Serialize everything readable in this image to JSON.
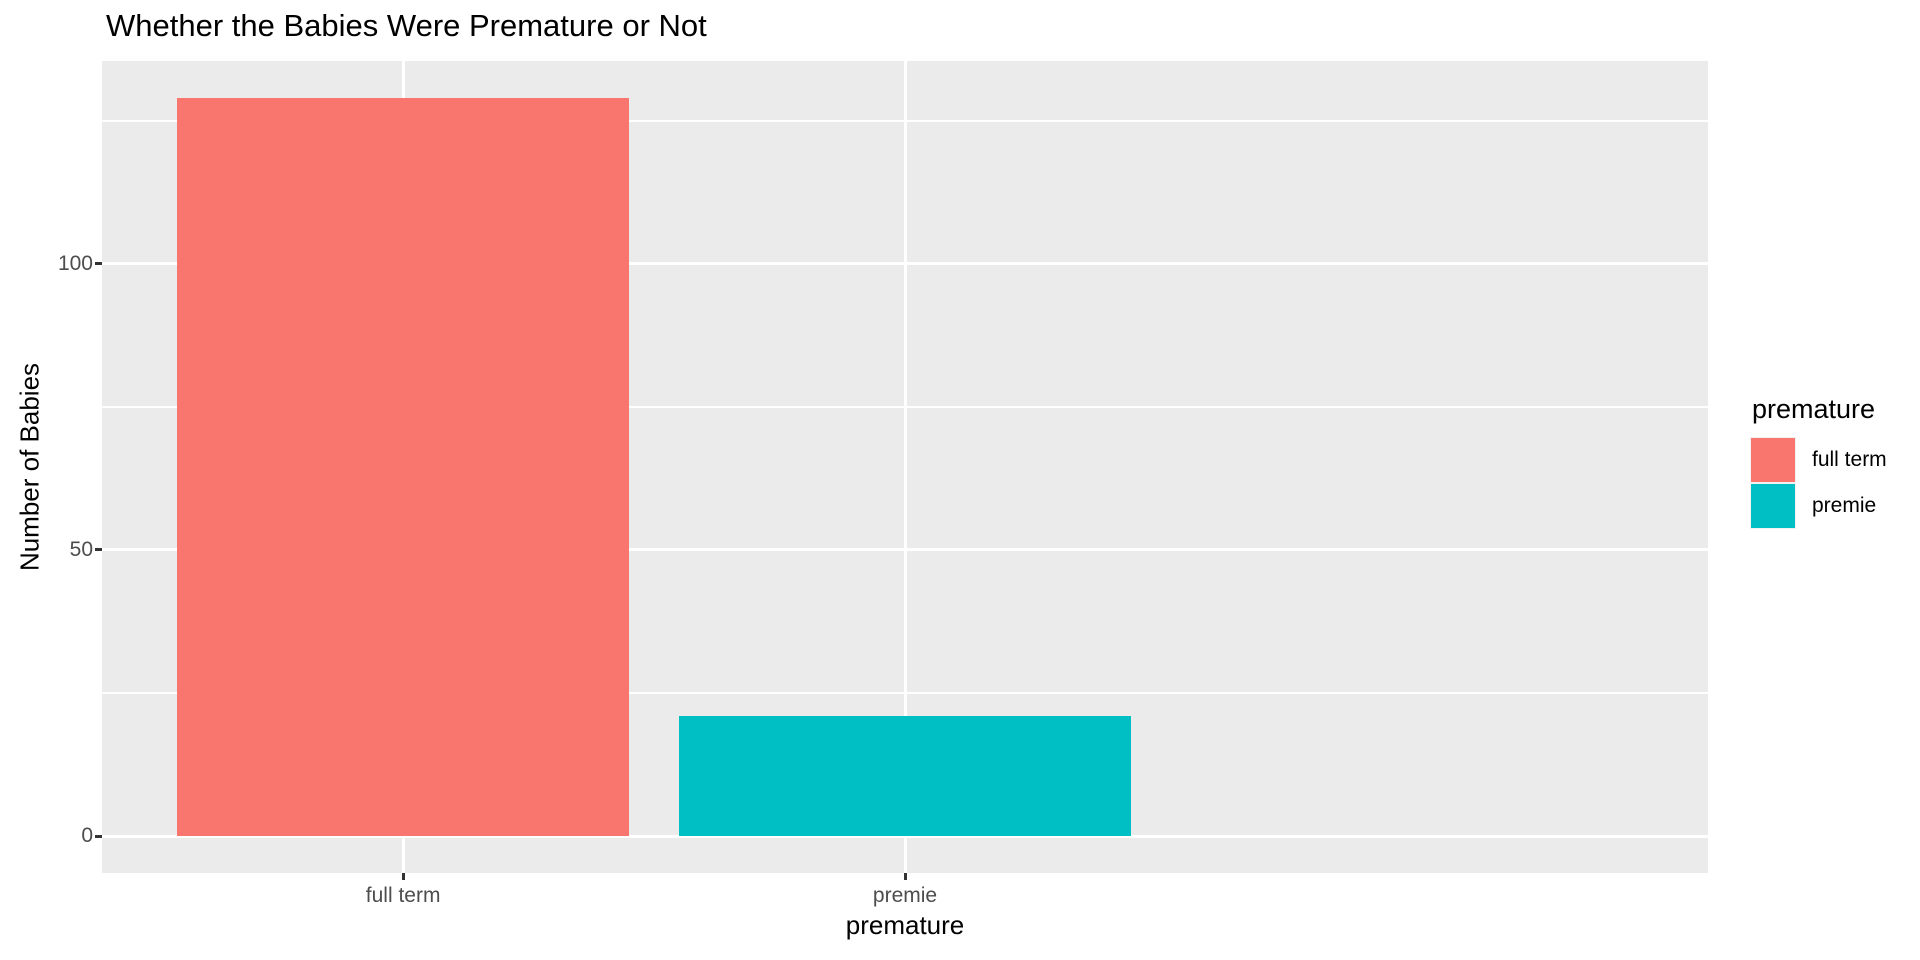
{
  "title": "Whether the Babies Were Premature or Not",
  "chart_data": {
    "type": "bar",
    "title": "Whether the Babies Were Premature or Not",
    "xlabel": "premature",
    "ylabel": "Number of Babies",
    "categories": [
      "full term",
      "premie"
    ],
    "values": [
      129,
      21
    ],
    "bar_colors": [
      "#F8766D",
      "#00BFC4"
    ],
    "ylim": [
      -6.45,
      135.45
    ],
    "yticks": [
      0,
      50,
      100
    ],
    "ytick_labels": [
      "0",
      "50",
      "100"
    ],
    "yticks_minor": [
      25,
      75,
      125
    ],
    "grid": "white major+minor horizontal lines and major vertical lines on gray panel",
    "panel_background": "#EBEBEB",
    "gridline_color": "#FFFFFF",
    "tick_label_color": "#4D4D4D",
    "legend": {
      "title": "premature",
      "position": "right",
      "entries": [
        {
          "label": "full term",
          "color": "#F8766D"
        },
        {
          "label": "premie",
          "color": "#00BFC4"
        }
      ]
    }
  }
}
